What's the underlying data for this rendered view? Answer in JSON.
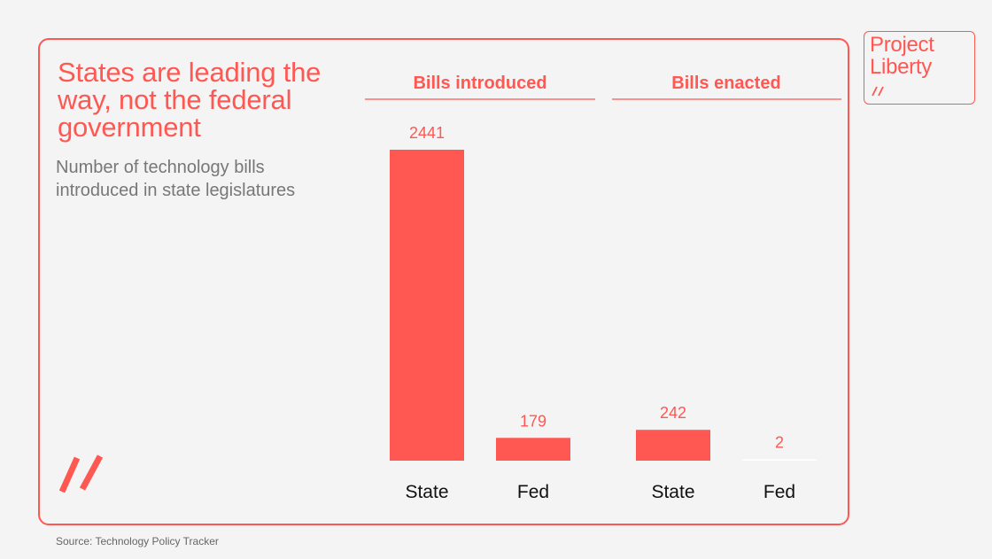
{
  "title": "States are leading the way, not the federal government",
  "subtitle": "Number of technology bills introduced in state legislatures",
  "source": "Source: Technology Policy Tracker",
  "logo": {
    "text_line1": "Project",
    "text_line2": "Liberty"
  },
  "colors": {
    "accent": "#ff5752",
    "background": "#f4f4f4",
    "subtitle": "#777777",
    "category_text": "#111111"
  },
  "chart_data": [
    {
      "type": "bar",
      "title": "Bills introduced",
      "categories": [
        "State",
        "Fed"
      ],
      "values": [
        2441,
        179
      ],
      "ylim": [
        0,
        2441
      ]
    },
    {
      "type": "bar",
      "title": "Bills enacted",
      "categories": [
        "State",
        "Fed"
      ],
      "values": [
        242,
        2
      ],
      "ylim": [
        0,
        2441
      ]
    }
  ]
}
